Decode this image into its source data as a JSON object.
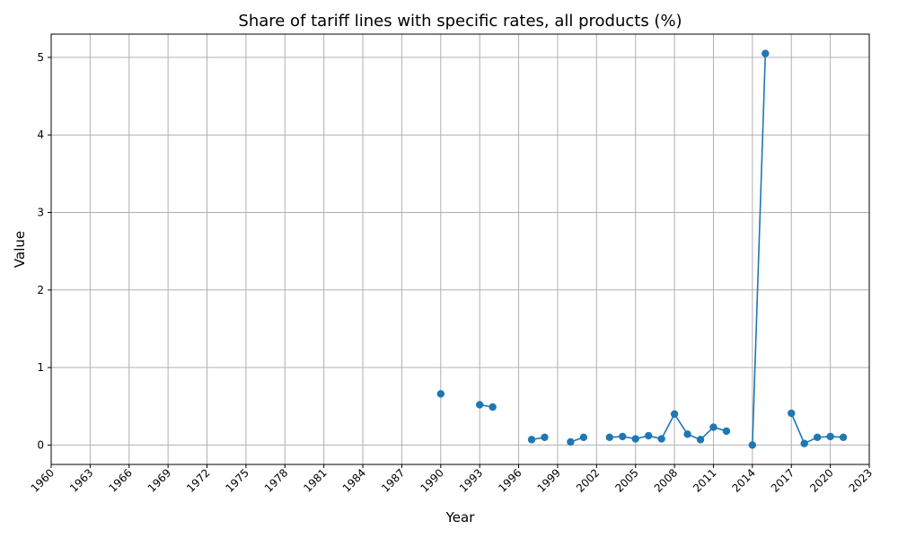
{
  "chart_data": {
    "type": "line",
    "title": "Share of tariff lines with specific rates, all products (%)",
    "xlabel": "Year",
    "ylabel": "Value",
    "xlim": [
      1960,
      2023
    ],
    "ylim": [
      -0.25,
      5.3
    ],
    "xticks": [
      1960,
      1963,
      1966,
      1969,
      1972,
      1975,
      1978,
      1981,
      1984,
      1987,
      1990,
      1993,
      1996,
      1999,
      2002,
      2005,
      2008,
      2011,
      2014,
      2017,
      2020,
      2023
    ],
    "yticks": [
      0,
      1,
      2,
      3,
      4,
      5
    ],
    "grid": true,
    "series": [
      {
        "color": "#1f77b4",
        "points": [
          [
            1990,
            0.66
          ],
          [
            1993,
            0.52
          ],
          [
            1994,
            0.49
          ],
          [
            1997,
            0.07
          ],
          [
            1998,
            0.1
          ],
          [
            2000,
            0.04
          ],
          [
            2001,
            0.1
          ],
          [
            2003,
            0.1
          ],
          [
            2004,
            0.11
          ],
          [
            2005,
            0.08
          ],
          [
            2006,
            0.12
          ],
          [
            2007,
            0.08
          ],
          [
            2008,
            0.4
          ],
          [
            2009,
            0.14
          ],
          [
            2010,
            0.07
          ],
          [
            2011,
            0.23
          ],
          [
            2012,
            0.18
          ],
          [
            2014,
            0.0
          ],
          [
            2015,
            5.05
          ],
          [
            2017,
            0.41
          ],
          [
            2018,
            0.02
          ],
          [
            2019,
            0.1
          ],
          [
            2020,
            0.11
          ],
          [
            2021,
            0.1
          ]
        ]
      }
    ]
  }
}
